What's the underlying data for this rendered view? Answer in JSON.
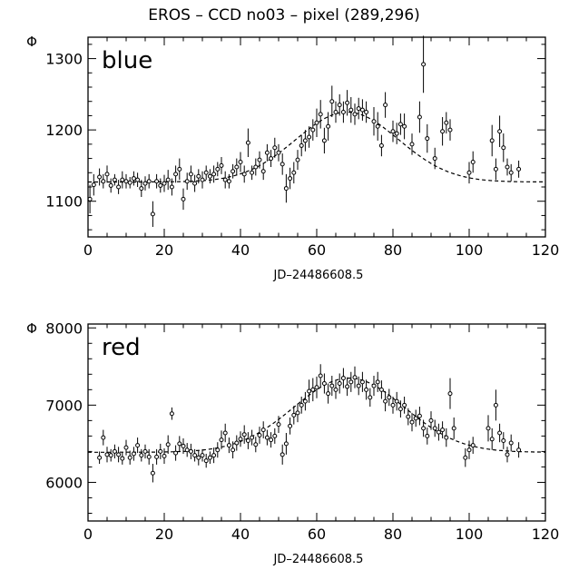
{
  "chart_data": {
    "title": "EROS – CCD no03 – pixel (289,296)",
    "y_symbol": "Φ",
    "panels": [
      {
        "type": "scatter",
        "label": "blue",
        "xlabel": "JD–24486608.5",
        "ylabel": "Φ",
        "xlim": [
          0,
          120
        ],
        "ylim": [
          1050,
          1330
        ],
        "xticks": [
          0,
          20,
          40,
          60,
          80,
          100,
          120
        ],
        "yticks": [
          1100,
          1200,
          1300
        ],
        "fit": {
          "baseline": 1127,
          "amplitude": 98,
          "t0": 68,
          "sigma": 13.5
        },
        "points": [
          [
            0.5,
            1103,
            20
          ],
          [
            1.5,
            1123,
            15
          ],
          [
            3,
            1134,
            12
          ],
          [
            4,
            1128,
            10
          ],
          [
            5,
            1138,
            12
          ],
          [
            6,
            1122,
            10
          ],
          [
            7,
            1130,
            8
          ],
          [
            8,
            1120,
            10
          ],
          [
            9,
            1130,
            12
          ],
          [
            10,
            1128,
            10
          ],
          [
            11,
            1126,
            8
          ],
          [
            12,
            1132,
            10
          ],
          [
            13,
            1130,
            10
          ],
          [
            14,
            1118,
            12
          ],
          [
            15,
            1125,
            10
          ],
          [
            16,
            1128,
            10
          ],
          [
            17,
            1082,
            18
          ],
          [
            18,
            1128,
            10
          ],
          [
            19,
            1122,
            10
          ],
          [
            20,
            1125,
            12
          ],
          [
            21,
            1130,
            14
          ],
          [
            22,
            1120,
            12
          ],
          [
            23,
            1138,
            12
          ],
          [
            24,
            1145,
            15
          ],
          [
            25,
            1103,
            15
          ],
          [
            26,
            1128,
            12
          ],
          [
            27,
            1138,
            12
          ],
          [
            28,
            1125,
            12
          ],
          [
            29,
            1135,
            10
          ],
          [
            30,
            1130,
            12
          ],
          [
            31,
            1140,
            10
          ],
          [
            32,
            1135,
            10
          ],
          [
            33,
            1138,
            12
          ],
          [
            34,
            1145,
            10
          ],
          [
            35,
            1150,
            12
          ],
          [
            36,
            1130,
            12
          ],
          [
            37,
            1128,
            10
          ],
          [
            38,
            1142,
            10
          ],
          [
            39,
            1148,
            12
          ],
          [
            40,
            1155,
            14
          ],
          [
            41,
            1138,
            12
          ],
          [
            42,
            1182,
            20
          ],
          [
            43,
            1140,
            10
          ],
          [
            44,
            1148,
            12
          ],
          [
            45,
            1158,
            12
          ],
          [
            46,
            1142,
            12
          ],
          [
            47,
            1168,
            12
          ],
          [
            48,
            1160,
            12
          ],
          [
            49,
            1175,
            14
          ],
          [
            50,
            1168,
            12
          ],
          [
            51,
            1152,
            15
          ],
          [
            52,
            1118,
            20
          ],
          [
            53,
            1132,
            15
          ],
          [
            54,
            1140,
            15
          ],
          [
            55,
            1158,
            14
          ],
          [
            56,
            1178,
            15
          ],
          [
            57,
            1185,
            15
          ],
          [
            58,
            1190,
            15
          ],
          [
            59,
            1200,
            15
          ],
          [
            60,
            1210,
            20
          ],
          [
            61,
            1222,
            20
          ],
          [
            62,
            1185,
            18
          ],
          [
            63,
            1205,
            20
          ],
          [
            64,
            1240,
            22
          ],
          [
            65,
            1225,
            15
          ],
          [
            66,
            1235,
            15
          ],
          [
            67,
            1225,
            15
          ],
          [
            68,
            1238,
            18
          ],
          [
            69,
            1228,
            18
          ],
          [
            70,
            1222,
            15
          ],
          [
            71,
            1230,
            15
          ],
          [
            72,
            1228,
            15
          ],
          [
            73,
            1225,
            15
          ],
          [
            75,
            1212,
            20
          ],
          [
            76,
            1205,
            20
          ],
          [
            77,
            1178,
            15
          ],
          [
            78,
            1235,
            18
          ],
          [
            80,
            1198,
            15
          ],
          [
            81,
            1195,
            15
          ],
          [
            82,
            1208,
            15
          ],
          [
            83,
            1205,
            18
          ],
          [
            85,
            1180,
            15
          ],
          [
            87,
            1218,
            22
          ],
          [
            88,
            1292,
            40
          ],
          [
            89,
            1188,
            20
          ],
          [
            91,
            1160,
            15
          ],
          [
            93,
            1198,
            20
          ],
          [
            94,
            1210,
            15
          ],
          [
            95,
            1200,
            15
          ],
          [
            100,
            1140,
            15
          ],
          [
            101,
            1155,
            15
          ],
          [
            106,
            1185,
            22
          ],
          [
            107,
            1145,
            15
          ],
          [
            108,
            1198,
            22
          ],
          [
            109,
            1175,
            20
          ],
          [
            110,
            1148,
            12
          ],
          [
            111,
            1140,
            12
          ],
          [
            113,
            1145,
            12
          ]
        ]
      },
      {
        "type": "scatter",
        "label": "red",
        "xlabel": "JD–24486608.5",
        "ylabel": "Φ",
        "xlim": [
          0,
          120
        ],
        "ylim": [
          5500,
          8050
        ],
        "xticks": [
          0,
          20,
          40,
          60,
          80,
          100,
          120
        ],
        "yticks": [
          6000,
          7000,
          8000
        ],
        "fit": {
          "baseline": 6390,
          "amplitude": 960,
          "t0": 68.5,
          "sigma": 14.5
        },
        "points": [
          [
            3,
            6320,
            80
          ],
          [
            4,
            6580,
            100
          ],
          [
            5,
            6360,
            100
          ],
          [
            6,
            6350,
            80
          ],
          [
            7,
            6400,
            90
          ],
          [
            8,
            6360,
            100
          ],
          [
            9,
            6310,
            80
          ],
          [
            10,
            6450,
            100
          ],
          [
            11,
            6320,
            90
          ],
          [
            12,
            6370,
            90
          ],
          [
            13,
            6480,
            100
          ],
          [
            14,
            6350,
            80
          ],
          [
            15,
            6400,
            90
          ],
          [
            16,
            6330,
            100
          ],
          [
            17,
            6120,
            120
          ],
          [
            18,
            6330,
            100
          ],
          [
            19,
            6400,
            100
          ],
          [
            20,
            6340,
            100
          ],
          [
            21,
            6490,
            120
          ],
          [
            22,
            6890,
            80
          ],
          [
            23,
            6380,
            100
          ],
          [
            24,
            6500,
            100
          ],
          [
            25,
            6470,
            100
          ],
          [
            26,
            6420,
            90
          ],
          [
            27,
            6400,
            100
          ],
          [
            28,
            6350,
            80
          ],
          [
            29,
            6320,
            100
          ],
          [
            30,
            6350,
            80
          ],
          [
            31,
            6280,
            90
          ],
          [
            32,
            6320,
            80
          ],
          [
            33,
            6350,
            100
          ],
          [
            34,
            6420,
            100
          ],
          [
            35,
            6550,
            120
          ],
          [
            36,
            6640,
            120
          ],
          [
            37,
            6480,
            100
          ],
          [
            38,
            6420,
            110
          ],
          [
            39,
            6510,
            100
          ],
          [
            40,
            6560,
            100
          ],
          [
            41,
            6620,
            120
          ],
          [
            42,
            6540,
            110
          ],
          [
            43,
            6580,
            100
          ],
          [
            44,
            6490,
            100
          ],
          [
            45,
            6610,
            110
          ],
          [
            46,
            6680,
            110
          ],
          [
            47,
            6580,
            100
          ],
          [
            48,
            6550,
            100
          ],
          [
            49,
            6600,
            100
          ],
          [
            50,
            6750,
            110
          ],
          [
            51,
            6360,
            130
          ],
          [
            52,
            6500,
            140
          ],
          [
            53,
            6730,
            110
          ],
          [
            54,
            6870,
            120
          ],
          [
            55,
            6900,
            120
          ],
          [
            56,
            7000,
            110
          ],
          [
            57,
            7050,
            120
          ],
          [
            58,
            7180,
            150
          ],
          [
            59,
            7200,
            150
          ],
          [
            60,
            7230,
            140
          ],
          [
            61,
            7380,
            150
          ],
          [
            62,
            7280,
            130
          ],
          [
            63,
            7150,
            130
          ],
          [
            64,
            7250,
            130
          ],
          [
            65,
            7200,
            120
          ],
          [
            66,
            7280,
            130
          ],
          [
            67,
            7350,
            130
          ],
          [
            68,
            7240,
            120
          ],
          [
            69,
            7300,
            130
          ],
          [
            70,
            7360,
            140
          ],
          [
            71,
            7250,
            120
          ],
          [
            72,
            7300,
            130
          ],
          [
            73,
            7200,
            130
          ],
          [
            74,
            7100,
            120
          ],
          [
            75,
            7250,
            130
          ],
          [
            76,
            7300,
            130
          ],
          [
            77,
            7200,
            120
          ],
          [
            78,
            7050,
            130
          ],
          [
            79,
            7100,
            110
          ],
          [
            80,
            7000,
            110
          ],
          [
            81,
            7050,
            120
          ],
          [
            82,
            6950,
            110
          ],
          [
            83,
            7000,
            110
          ],
          [
            84,
            6850,
            110
          ],
          [
            85,
            6780,
            120
          ],
          [
            86,
            6830,
            110
          ],
          [
            87,
            6860,
            120
          ],
          [
            88,
            6700,
            110
          ],
          [
            89,
            6600,
            110
          ],
          [
            90,
            6800,
            120
          ],
          [
            91,
            6700,
            110
          ],
          [
            92,
            6650,
            110
          ],
          [
            93,
            6680,
            110
          ],
          [
            94,
            6580,
            120
          ],
          [
            95,
            7150,
            200
          ],
          [
            96,
            6700,
            140
          ],
          [
            99,
            6320,
            120
          ],
          [
            100,
            6420,
            120
          ],
          [
            101,
            6480,
            110
          ],
          [
            105,
            6700,
            170
          ],
          [
            106,
            6560,
            140
          ],
          [
            107,
            7000,
            200
          ],
          [
            108,
            6640,
            120
          ],
          [
            109,
            6540,
            110
          ],
          [
            110,
            6360,
            100
          ],
          [
            111,
            6510,
            110
          ],
          [
            113,
            6420,
            100
          ]
        ]
      }
    ]
  }
}
